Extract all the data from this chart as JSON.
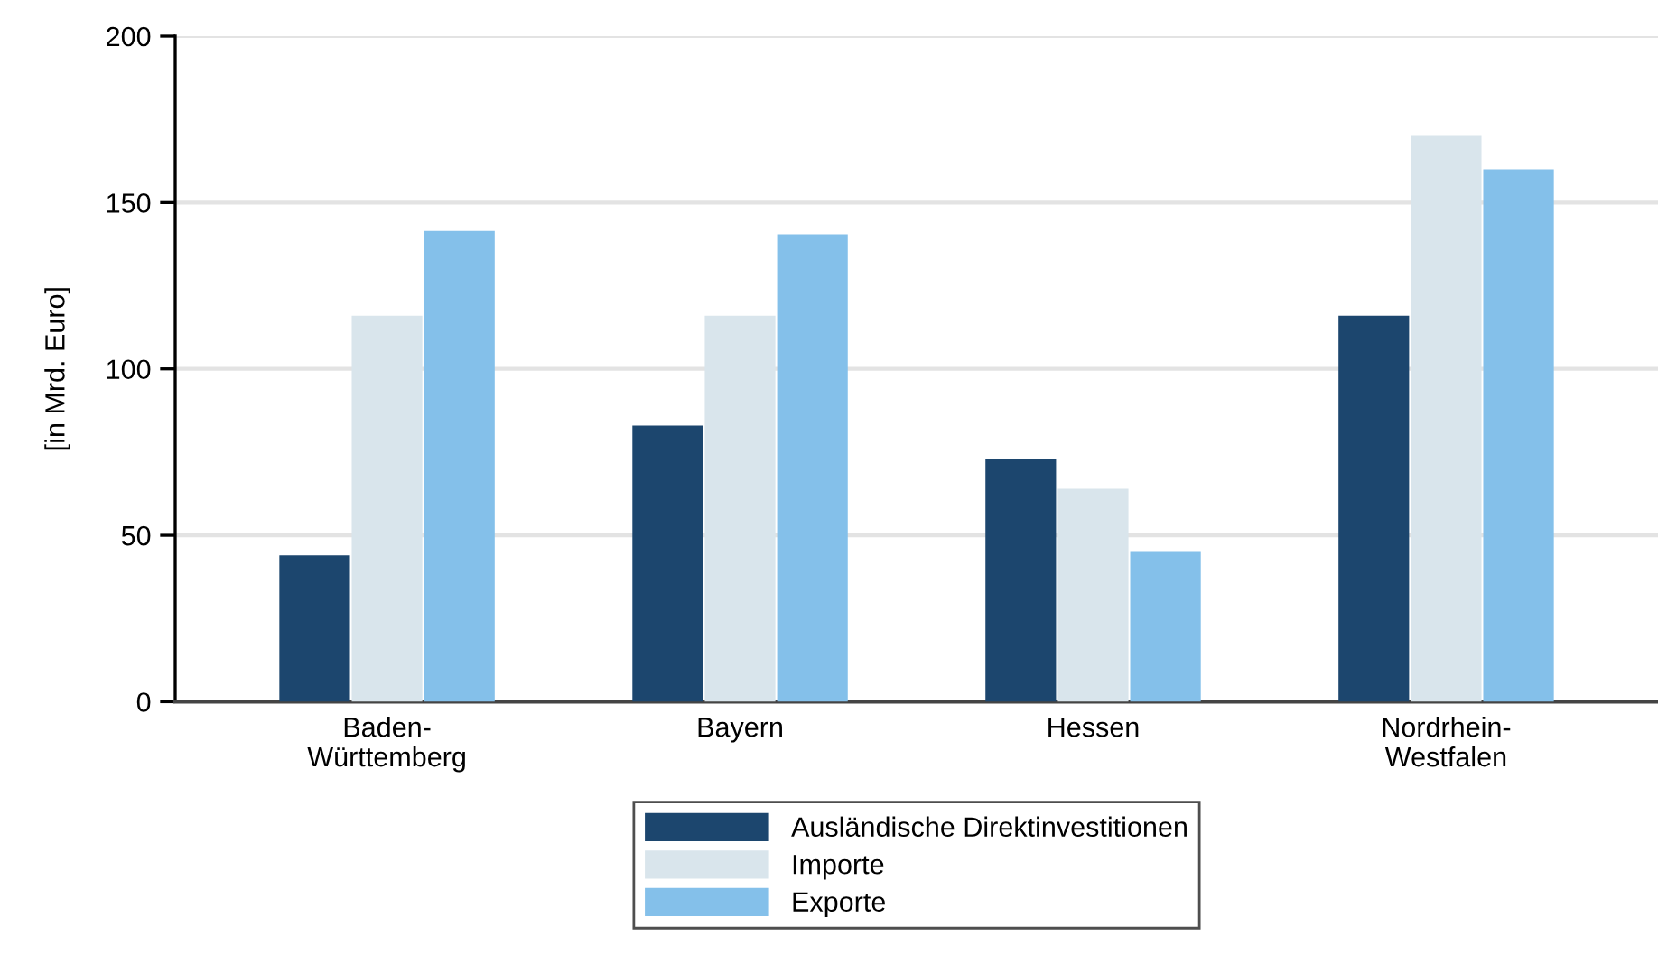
{
  "chart_data": {
    "type": "bar",
    "ylabel": "[in Mrd. Euro]",
    "categories": [
      "Baden-\nWürttemberg",
      "Bayern",
      "Hessen",
      "Nordrhein-\nWestfalen"
    ],
    "series": [
      {
        "name": "Ausländische Direktinvestitionen",
        "color": "#1c466e",
        "values": [
          44,
          83,
          73,
          116
        ]
      },
      {
        "name": "Importe",
        "color": "#d9e5ec",
        "values": [
          116,
          116,
          64,
          170
        ]
      },
      {
        "name": "Exporte",
        "color": "#84c0ea",
        "values": [
          141.5,
          140.5,
          45,
          160
        ]
      }
    ],
    "ylim": [
      0,
      200
    ],
    "yticks": [
      0,
      50,
      100,
      150,
      200
    ],
    "grid": "y",
    "legend": "bottom"
  }
}
